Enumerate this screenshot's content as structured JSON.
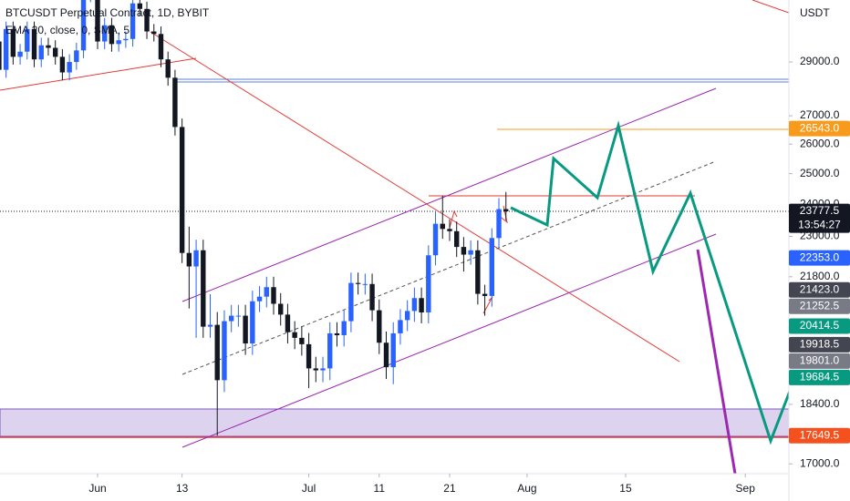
{
  "chart_data": {
    "type": "candlestick",
    "title": "BTCUSDT Perpetual Contract, 1D, BYBIT",
    "subtitle": "EMA 20, close, 0, SMA, 5",
    "y_axis_label": "USDT",
    "log_scale": true,
    "grid": false,
    "up_color": "#2962ff",
    "down_color": "#131722",
    "ylim": [
      16780,
      31490
    ],
    "yticks": [
      {
        "value": 29000,
        "label": "29000.0"
      },
      {
        "value": 27000,
        "label": "27000.0"
      },
      {
        "value": 26000,
        "label": "26000.0"
      },
      {
        "value": 25000,
        "label": "25000.0"
      },
      {
        "value": 24000,
        "label": "24000.0"
      },
      {
        "value": 23000,
        "label": "23000.0"
      },
      {
        "value": 21800,
        "label": "21800.0"
      },
      {
        "value": 18400,
        "label": "18400.0"
      },
      {
        "value": 17000,
        "label": "17000.0"
      }
    ],
    "xlim": [
      -13.86,
      98.19
    ],
    "xticks": [
      {
        "value": 0,
        "label": "Jun"
      },
      {
        "value": 12,
        "label": "13"
      },
      {
        "value": 30,
        "label": "Jul"
      },
      {
        "value": 40,
        "label": "11"
      },
      {
        "value": 50,
        "label": "21"
      },
      {
        "value": 61,
        "label": "Aug"
      },
      {
        "value": 75,
        "label": "15"
      },
      {
        "value": 92,
        "label": "Sep"
      }
    ],
    "x": [
      -14,
      -13,
      -12,
      -11,
      -10,
      -9,
      -8,
      -7,
      -6,
      -5,
      -4,
      -3,
      -2,
      -1,
      0,
      1,
      2,
      3,
      4,
      5,
      6,
      7,
      8,
      9,
      10,
      11,
      12,
      13,
      14,
      15,
      16,
      17,
      18,
      19,
      20,
      21,
      22,
      23,
      24,
      25,
      26,
      27,
      28,
      29,
      30,
      31,
      32,
      33,
      34,
      35,
      36,
      37,
      38,
      39,
      40,
      41,
      42,
      43,
      44,
      45,
      46,
      47,
      48,
      49,
      50,
      51,
      52,
      53,
      54,
      55,
      56,
      57,
      58
    ],
    "open": [
      29800,
      28700,
      30300,
      29200,
      29400,
      30300,
      29100,
      29650,
      29550,
      29200,
      28600,
      29000,
      29450,
      31700,
      31800,
      29800,
      30450,
      29700,
      29850,
      29900,
      31350,
      31120,
      30200,
      30100,
      29100,
      28400,
      26600,
      22500,
      22100,
      22580,
      20400,
      20450,
      19000,
      20550,
      20700,
      20700,
      19950,
      21100,
      21230,
      21500,
      21030,
      20730,
      20250,
      20100,
      19930,
      19300,
      19250,
      19300,
      20220,
      20170,
      20550,
      21620,
      21590,
      21590,
      20850,
      19970,
      19330,
      20220,
      20580,
      20830,
      21190,
      20790,
      22430,
      23390,
      23230,
      23160,
      22680,
      22450,
      22580,
      21310,
      21250,
      22950,
      23850
    ],
    "high": [
      30100,
      30600,
      30600,
      29700,
      30600,
      30600,
      29950,
      29950,
      29850,
      29500,
      29300,
      29750,
      32000,
      32100,
      32100,
      30750,
      30750,
      30150,
      30200,
      31650,
      31650,
      31420,
      30500,
      30400,
      29400,
      28700,
      26900,
      23300,
      22900,
      22900,
      21300,
      20800,
      20850,
      21000,
      21000,
      21000,
      21400,
      21530,
      21800,
      21800,
      21330,
      21030,
      20550,
      20400,
      20230,
      19600,
      19600,
      20520,
      20520,
      20850,
      21920,
      21920,
      21890,
      21890,
      21150,
      20270,
      20520,
      20880,
      21130,
      21490,
      21490,
      22730,
      23790,
      24280,
      23530,
      23460,
      22980,
      22880,
      22880,
      21570,
      23250,
      24200,
      24400
    ],
    "low": [
      28400,
      28400,
      28900,
      28900,
      29100,
      28800,
      28800,
      29250,
      28900,
      28300,
      28300,
      28700,
      29150,
      31400,
      29500,
      29500,
      29400,
      29400,
      29550,
      29600,
      30820,
      29900,
      29800,
      28800,
      28100,
      26300,
      22200,
      20900,
      20100,
      20100,
      20100,
      17650,
      18700,
      20250,
      20400,
      19650,
      19650,
      20800,
      20930,
      20730,
      20430,
      19950,
      19800,
      19630,
      18800,
      18950,
      18950,
      19000,
      19870,
      19870,
      20250,
      21290,
      21290,
      20550,
      19670,
      19030,
      18900,
      19920,
      20280,
      20530,
      20490,
      20490,
      22130,
      22930,
      22860,
      22380,
      21950,
      22150,
      21010,
      20700,
      20950,
      22650,
      23500
    ],
    "close": [
      28700,
      30300,
      29200,
      29400,
      30300,
      29100,
      29650,
      29550,
      29200,
      28600,
      29000,
      29450,
      31700,
      31800,
      29800,
      30450,
      29700,
      29850,
      29900,
      31350,
      31120,
      30200,
      30100,
      29100,
      28400,
      26600,
      22500,
      22100,
      22580,
      20400,
      20450,
      19000,
      20550,
      20700,
      20700,
      19950,
      21100,
      21230,
      21500,
      21030,
      20730,
      20250,
      20100,
      19930,
      19300,
      19250,
      19300,
      20220,
      20170,
      20550,
      21620,
      21590,
      21590,
      20850,
      19970,
      19330,
      20220,
      20580,
      20830,
      21190,
      20790,
      22430,
      23390,
      23230,
      23160,
      22680,
      22450,
      22580,
      21310,
      21250,
      22950,
      23850,
      23780
    ],
    "price_labels": [
      {
        "value": 26543,
        "label": "26543.0",
        "color": "#f89b1c"
      },
      {
        "value": 23777.5,
        "label": "23777.5",
        "sublabel": "13:54:27",
        "color": "#131722"
      },
      {
        "value": 22353,
        "label": "22353.0",
        "color": "#2962ff"
      },
      {
        "value": 21423,
        "label": "21423.0",
        "color": "#434651"
      },
      {
        "value": 21252.5,
        "label": "21252.5",
        "color": "#787b86"
      },
      {
        "value": 20414.5,
        "label": "20414.5",
        "color": "#089981"
      },
      {
        "value": 19918.5,
        "label": "19918.5",
        "color": "#434651"
      },
      {
        "value": 19801,
        "label": "19801.0",
        "color": "#787b86"
      },
      {
        "value": 19684.5,
        "label": "19684.5",
        "color": "#089981"
      },
      {
        "value": 17649.5,
        "label": "17649.5",
        "color": "#f4511e"
      }
    ]
  }
}
